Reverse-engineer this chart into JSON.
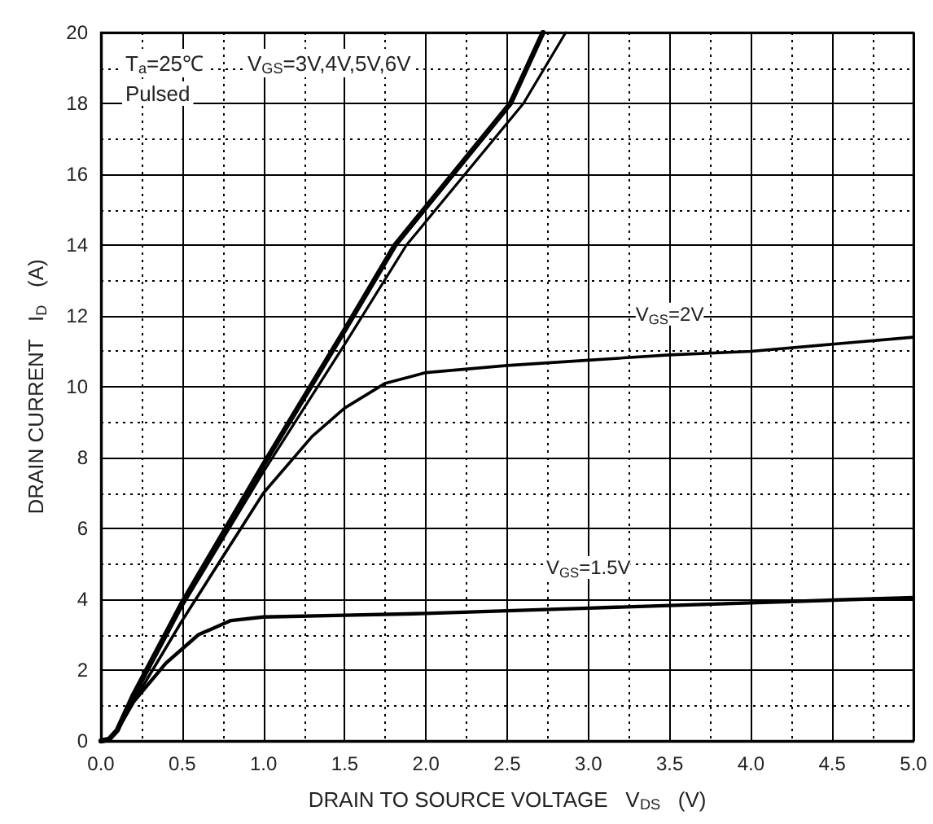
{
  "chart_data": {
    "type": "line",
    "xlabel": "DRAIN TO SOURCE VOLTAGE   V$_{DS}$   (V)",
    "ylabel": "DRAIN CURRENT   I$_{D}$   (A)",
    "annotations": [
      "T$_{a}$=25℃",
      "Pulsed",
      "V$_{GS}$=3V,4V,5V,6V"
    ],
    "series": [
      {
        "color": "#000000",
        "x": [
          0,
          0.05,
          0.1,
          0.2,
          0.5,
          1.0,
          1.5,
          1.81,
          2.52,
          2.72
        ],
        "values": [
          0,
          0.05,
          0.3,
          1.3,
          3.9,
          7.8,
          11.6,
          14,
          18,
          20
        ]
      },
      {
        "color": "#000000",
        "x": [
          0,
          0.05,
          0.1,
          0.2,
          0.5,
          1.0,
          1.5,
          1.88,
          2.6,
          2.86
        ],
        "values": [
          0,
          0.05,
          0.3,
          1.2,
          3.8,
          7.6,
          11.2,
          14,
          18,
          20
        ]
      },
      {
        "name": "V$_{GS}$=2V",
        "color": "#000000",
        "x": [
          0,
          0.05,
          0.1,
          0.2,
          0.5,
          1.0,
          1.3,
          1.5,
          1.75,
          2.0,
          2.5,
          3.0,
          3.5,
          4.0,
          4.5,
          5.0
        ],
        "values": [
          0,
          0.05,
          0.3,
          1.1,
          3.4,
          7.0,
          8.6,
          9.4,
          10.1,
          10.4,
          10.6,
          10.75,
          10.9,
          11.0,
          11.2,
          11.4
        ]
      },
      {
        "name": "V$_{GS}$=1.5V",
        "color": "#000000",
        "x": [
          0,
          0.05,
          0.1,
          0.2,
          0.4,
          0.6,
          0.8,
          1.0,
          1.5,
          2.0,
          3.0,
          4.0,
          5.0
        ],
        "values": [
          0,
          0.05,
          0.3,
          1.1,
          2.2,
          3.0,
          3.4,
          3.5,
          3.55,
          3.6,
          3.75,
          3.9,
          4.05
        ]
      }
    ],
    "xlim": [
      0,
      5
    ],
    "ylim": [
      0,
      20
    ],
    "xticks": [
      {
        "value": 0,
        "label": "0.0"
      },
      0.5,
      {
        "value": 1,
        "label": "1.0"
      },
      1.5,
      {
        "value": 2,
        "label": "2.0"
      },
      2.5,
      {
        "value": 3,
        "label": "3.0"
      },
      3.5,
      {
        "value": 4,
        "label": "4.0"
      },
      4.5,
      {
        "value": 5,
        "label": "5.0"
      }
    ],
    "yticks": [
      0,
      2,
      4,
      6,
      8,
      10,
      12,
      14,
      16,
      18,
      20
    ],
    "grid": true,
    "marker": "none",
    "line_style": "solid",
    "legend": false
  }
}
